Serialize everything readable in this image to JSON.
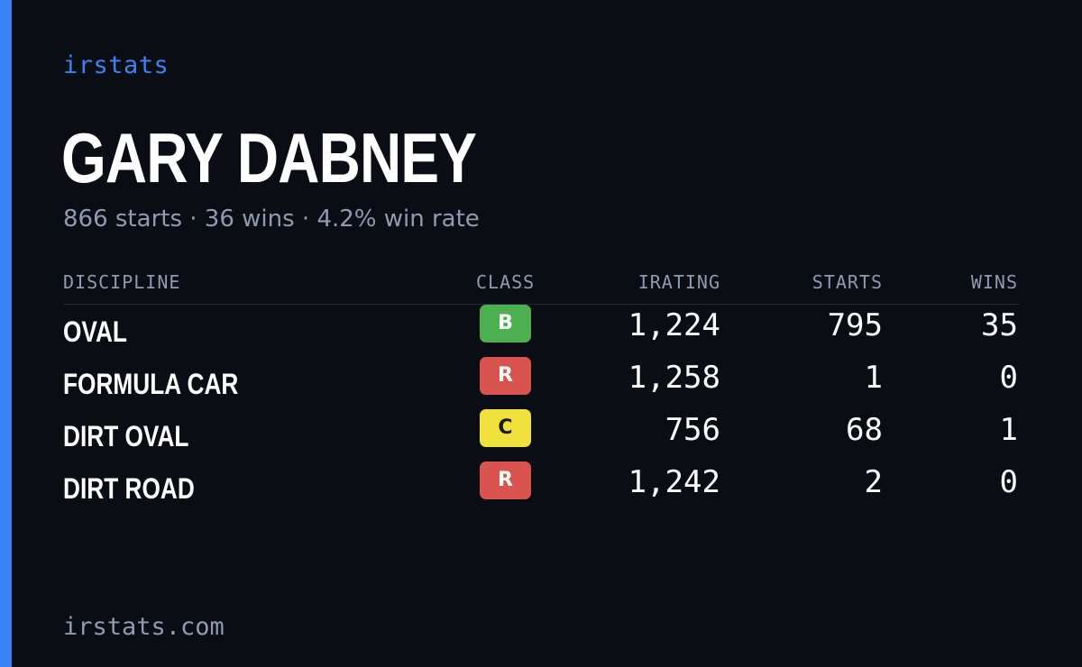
{
  "brand": "irstats",
  "player": {
    "name": "GARY DABNEY",
    "summary": "866 starts · 36 wins · 4.2% win rate"
  },
  "table": {
    "headers": {
      "discipline": "DISCIPLINE",
      "class": "CLASS",
      "irating": "IRATING",
      "starts": "STARTS",
      "wins": "WINS"
    },
    "rows": [
      {
        "discipline": "OVAL",
        "class": "B",
        "class_color": "#4caf50",
        "class_text_color": "#ffffff",
        "irating": "1,224",
        "starts": "795",
        "wins": "35"
      },
      {
        "discipline": "FORMULA CAR",
        "class": "R",
        "class_color": "#d9534f",
        "class_text_color": "#ffffff",
        "irating": "1,258",
        "starts": "1",
        "wins": "0"
      },
      {
        "discipline": "DIRT OVAL",
        "class": "C",
        "class_color": "#f0e13c",
        "class_text_color": "#1a1a1a",
        "irating": "756",
        "starts": "68",
        "wins": "1"
      },
      {
        "discipline": "DIRT ROAD",
        "class": "R",
        "class_color": "#d9534f",
        "class_text_color": "#ffffff",
        "irating": "1,242",
        "starts": "2",
        "wins": "0"
      }
    ]
  },
  "footer": "irstats.com",
  "colors": {
    "background": "#0a0d14",
    "accent": "#3b82f6",
    "muted": "#8f9bb0"
  }
}
